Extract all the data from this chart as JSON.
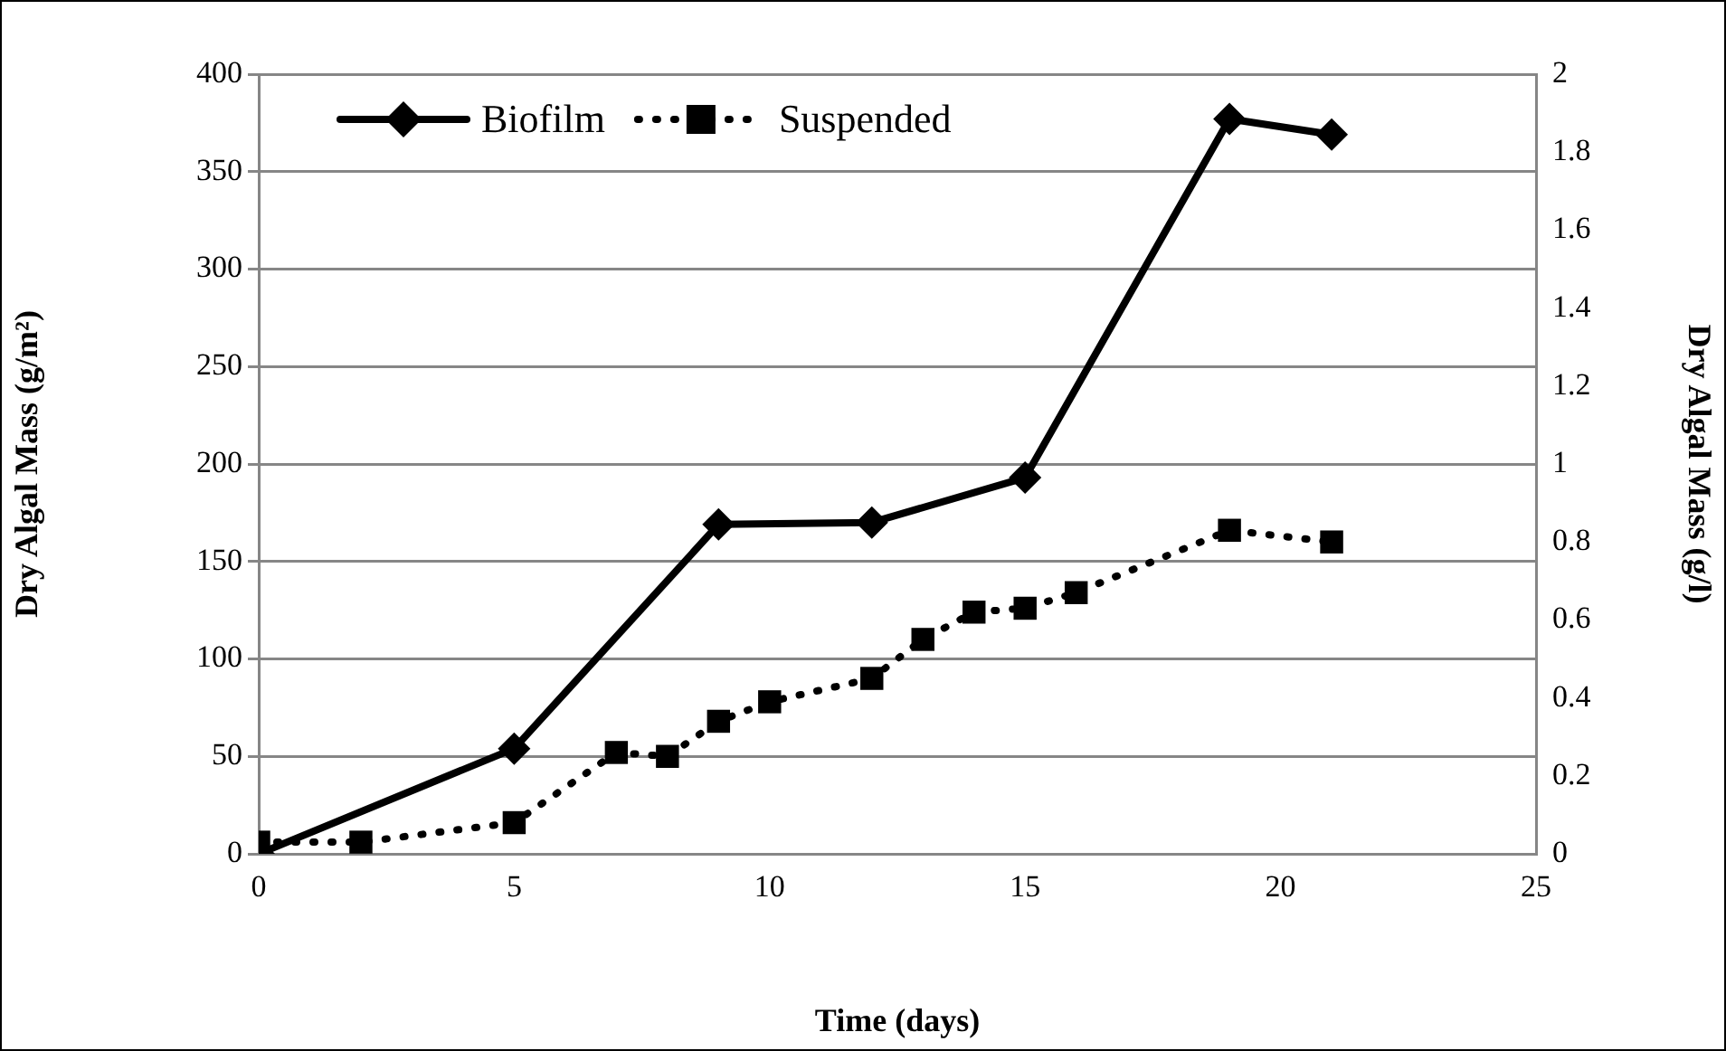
{
  "chart_data": {
    "type": "line",
    "xlabel": "Time (days)",
    "ylabel": "Dry Algal Mass (g/m²)",
    "y2label": "Dry Algal Mass (g/l)",
    "xlim": [
      0,
      25
    ],
    "xticks": [
      0,
      5,
      10,
      15,
      20,
      25
    ],
    "ylim": [
      0,
      400
    ],
    "yticks": [
      0,
      50,
      100,
      150,
      200,
      250,
      300,
      350,
      400
    ],
    "y2lim": [
      0,
      2
    ],
    "y2ticks": [
      0,
      0.2,
      0.4,
      0.6,
      0.8,
      1,
      1.2,
      1.4,
      1.6,
      1.8,
      2
    ],
    "grid": "y",
    "legend": "top left",
    "series": [
      {
        "name": "Biofilm",
        "color": "#000000",
        "marker": "diamond",
        "line_style": "solid",
        "x": [
          0,
          5,
          9,
          12,
          15,
          19,
          21
        ],
        "values": [
          0,
          54,
          169,
          170,
          193,
          377,
          369
        ]
      },
      {
        "name": "Suspended",
        "color": "#000000",
        "marker": "square",
        "line_style": "dotted",
        "axis": "y2",
        "x": [
          0,
          2,
          5,
          7,
          8,
          9,
          10,
          12,
          13,
          14,
          15,
          16,
          19,
          21
        ],
        "values": [
          0.03,
          0.03,
          0.08,
          0.26,
          0.25,
          0.34,
          0.39,
          0.45,
          0.55,
          0.62,
          0.63,
          0.67,
          0.83,
          0.8
        ]
      }
    ]
  }
}
